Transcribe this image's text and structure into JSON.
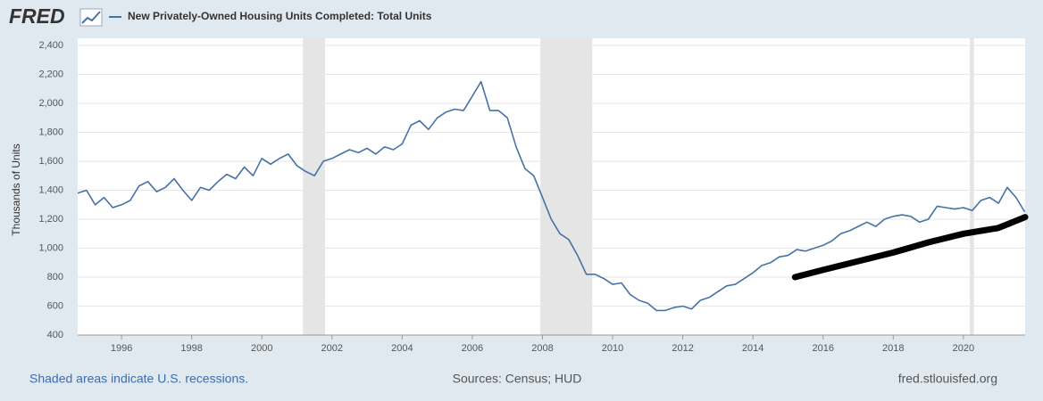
{
  "chart_data": {
    "type": "line",
    "brand": "FRED",
    "y_label": "Thousands of Units",
    "note": "Shaded areas indicate U.S. recessions.",
    "source": "Sources: Census; HUD",
    "site": "fred.stlouisfed.org",
    "xlim": [
      1994.75,
      2021.76
    ],
    "xticks": [
      1996,
      1998,
      2000,
      2002,
      2004,
      2006,
      2008,
      2010,
      2012,
      2014,
      2016,
      2018,
      2020
    ],
    "ylim": [
      400,
      2400
    ],
    "yticks": [
      {
        "value": 400,
        "label": "400"
      },
      {
        "value": 600,
        "label": "600"
      },
      {
        "value": 800,
        "label": "800"
      },
      {
        "value": 1000,
        "label": "1,000"
      },
      {
        "value": 1200,
        "label": "1,200"
      },
      {
        "value": 1400,
        "label": "1,400"
      },
      {
        "value": 1600,
        "label": "1,600"
      },
      {
        "value": 1800,
        "label": "1,800"
      },
      {
        "value": 2000,
        "label": "2,000"
      },
      {
        "value": 2200,
        "label": "2,200"
      },
      {
        "value": 2400,
        "label": "2,400"
      }
    ],
    "grid": true,
    "recessions": [
      [
        2001.17,
        2001.8
      ],
      [
        2007.94,
        2009.42
      ],
      [
        2020.18,
        2020.3
      ]
    ],
    "x": [
      1994.75,
      1995,
      1995.25,
      1995.5,
      1995.75,
      1996,
      1996.25,
      1996.5,
      1996.75,
      1997,
      1997.25,
      1997.5,
      1997.75,
      1998,
      1998.25,
      1998.5,
      1998.75,
      1999,
      1999.25,
      1999.5,
      1999.75,
      2000,
      2000.25,
      2000.5,
      2000.75,
      2001,
      2001.25,
      2001.5,
      2001.75,
      2002,
      2002.25,
      2002.5,
      2002.75,
      2003,
      2003.25,
      2003.5,
      2003.75,
      2004,
      2004.25,
      2004.5,
      2004.75,
      2005,
      2005.25,
      2005.5,
      2005.75,
      2006,
      2006.25,
      2006.5,
      2006.75,
      2007,
      2007.25,
      2007.5,
      2007.75,
      2008,
      2008.25,
      2008.5,
      2008.75,
      2009,
      2009.25,
      2009.5,
      2009.75,
      2010,
      2010.25,
      2010.5,
      2010.75,
      2011,
      2011.25,
      2011.5,
      2011.75,
      2012,
      2012.25,
      2012.5,
      2012.75,
      2013,
      2013.25,
      2013.5,
      2013.75,
      2014,
      2014.25,
      2014.5,
      2014.75,
      2015,
      2015.25,
      2015.5,
      2015.75,
      2016,
      2016.25,
      2016.5,
      2016.75,
      2017,
      2017.25,
      2017.5,
      2017.75,
      2018,
      2018.25,
      2018.5,
      2018.75,
      2019,
      2019.25,
      2019.5,
      2019.75,
      2020,
      2020.25,
      2020.5,
      2020.75,
      2021,
      2021.25,
      2021.5,
      2021.75
    ],
    "series": [
      {
        "name": "New Privately-Owned Housing Units Completed: Total Units",
        "color": "#4572a7",
        "values": [
          1380,
          1400,
          1300,
          1350,
          1280,
          1300,
          1330,
          1430,
          1460,
          1390,
          1420,
          1480,
          1400,
          1330,
          1420,
          1400,
          1460,
          1510,
          1480,
          1560,
          1500,
          1620,
          1580,
          1620,
          1650,
          1570,
          1530,
          1500,
          1600,
          1620,
          1650,
          1680,
          1660,
          1690,
          1650,
          1700,
          1680,
          1720,
          1850,
          1880,
          1820,
          1900,
          1940,
          1960,
          1950,
          2050,
          2150,
          1950,
          1950,
          1900,
          1700,
          1550,
          1500,
          1350,
          1200,
          1100,
          1060,
          950,
          820,
          820,
          790,
          750,
          760,
          680,
          640,
          620,
          570,
          570,
          590,
          600,
          580,
          640,
          660,
          700,
          740,
          750,
          790,
          830,
          880,
          900,
          940,
          950,
          990,
          980,
          1000,
          1020,
          1050,
          1100,
          1120,
          1150,
          1180,
          1150,
          1200,
          1220,
          1230,
          1220,
          1180,
          1200,
          1290,
          1280,
          1270,
          1280,
          1260,
          1330,
          1350,
          1310,
          1420,
          1350,
          1250
        ]
      }
    ],
    "annotation_line": {
      "color": "#000000",
      "x": [
        2015.2,
        2016,
        2017,
        2018,
        2019,
        2020,
        2021,
        2021.76
      ],
      "values": [
        800,
        850,
        910,
        970,
        1040,
        1100,
        1140,
        1215
      ]
    }
  }
}
